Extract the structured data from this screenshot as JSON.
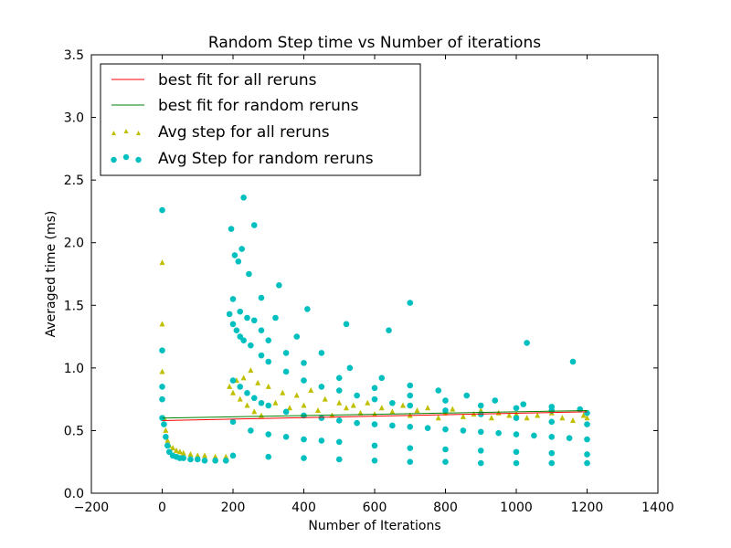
{
  "chart_data": {
    "type": "scatter",
    "title": "Random Step time vs Number of iterations",
    "xlabel": "Number of Iterations",
    "ylabel": "Averaged time (ms)",
    "xlim": [
      -200,
      1400
    ],
    "ylim": [
      0.0,
      3.5
    ],
    "xticks": [
      "−200",
      "0",
      "200",
      "400",
      "600",
      "800",
      "1000",
      "1200",
      "1400"
    ],
    "yticks": [
      "0.0",
      "0.5",
      "1.0",
      "1.5",
      "2.0",
      "2.5",
      "3.0",
      "3.5"
    ],
    "xtick_values": [
      -200,
      0,
      200,
      400,
      600,
      800,
      1000,
      1200,
      1400
    ],
    "ytick_values": [
      0.0,
      0.5,
      1.0,
      1.5,
      2.0,
      2.5,
      3.0,
      3.5
    ],
    "grid": false,
    "legend_position": "top-left",
    "series": [
      {
        "name": "best fit for all reruns",
        "kind": "line",
        "color": "#ff0000",
        "x": [
          0,
          1200
        ],
        "y": [
          0.58,
          0.65
        ]
      },
      {
        "name": "best fit for random reruns",
        "kind": "line",
        "color": "#008000",
        "x": [
          0,
          1200
        ],
        "y": [
          0.6,
          0.66
        ]
      },
      {
        "name": "Avg step for all reruns",
        "kind": "scatter",
        "marker": "triangle",
        "color": "#bfbf00",
        "x": [
          0,
          0,
          0,
          5,
          10,
          15,
          20,
          30,
          40,
          50,
          60,
          80,
          100,
          120,
          150,
          180,
          190,
          200,
          210,
          220,
          230,
          240,
          250,
          260,
          270,
          280,
          300,
          320,
          340,
          360,
          380,
          400,
          420,
          440,
          460,
          480,
          500,
          520,
          540,
          560,
          580,
          600,
          620,
          650,
          680,
          700,
          720,
          750,
          780,
          800,
          820,
          850,
          880,
          900,
          930,
          950,
          980,
          1000,
          1030,
          1060,
          1100,
          1130,
          1160,
          1190,
          1200
        ],
        "y": [
          1.84,
          1.35,
          0.97,
          0.6,
          0.5,
          0.42,
          0.38,
          0.36,
          0.34,
          0.33,
          0.32,
          0.31,
          0.3,
          0.3,
          0.29,
          0.29,
          0.85,
          0.8,
          0.9,
          0.75,
          0.92,
          0.7,
          0.98,
          0.65,
          0.88,
          0.62,
          0.85,
          0.72,
          0.8,
          0.68,
          0.78,
          0.7,
          0.82,
          0.66,
          0.75,
          0.62,
          0.72,
          0.68,
          0.7,
          0.64,
          0.72,
          0.63,
          0.68,
          0.65,
          0.7,
          0.62,
          0.66,
          0.68,
          0.6,
          0.64,
          0.67,
          0.61,
          0.63,
          0.66,
          0.6,
          0.64,
          0.62,
          0.63,
          0.6,
          0.62,
          0.64,
          0.6,
          0.58,
          0.62,
          0.6
        ]
      },
      {
        "name": "Avg Step for random reruns",
        "kind": "scatter",
        "marker": "circle",
        "color": "#00bfbf",
        "x": [
          0,
          0,
          0,
          0,
          0,
          5,
          10,
          15,
          20,
          30,
          40,
          50,
          60,
          80,
          100,
          120,
          150,
          180,
          200,
          220,
          240,
          260,
          280,
          300,
          350,
          400,
          450,
          500,
          550,
          600,
          650,
          700,
          750,
          800,
          850,
          900,
          950,
          1000,
          1050,
          1100,
          1150,
          1200,
          190,
          200,
          210,
          220,
          230,
          250,
          280,
          300,
          350,
          400,
          450,
          500,
          550,
          600,
          650,
          700,
          800,
          900,
          1000,
          1100,
          1200,
          200,
          250,
          300,
          350,
          400,
          450,
          500,
          600,
          700,
          800,
          900,
          1000,
          1100,
          1200,
          200,
          220,
          240,
          260,
          280,
          300,
          350,
          400,
          500,
          600,
          700,
          800,
          900,
          1000,
          1100,
          1200,
          195,
          205,
          215,
          225,
          230,
          245,
          260,
          280,
          320,
          380,
          450,
          530,
          620,
          700,
          780,
          860,
          940,
          1020,
          1100,
          1180,
          330,
          410,
          520,
          640,
          700,
          1030,
          1160,
          200,
          300,
          400,
          500,
          600,
          700,
          800,
          900,
          1000,
          1100,
          1200
        ],
        "y": [
          2.26,
          1.14,
          0.85,
          0.75,
          0.6,
          0.55,
          0.45,
          0.38,
          0.33,
          0.3,
          0.29,
          0.28,
          0.28,
          0.27,
          0.27,
          0.26,
          0.26,
          0.26,
          0.9,
          0.85,
          0.8,
          0.76,
          0.72,
          0.7,
          0.65,
          0.62,
          0.6,
          0.58,
          0.56,
          0.55,
          0.54,
          0.53,
          0.52,
          0.51,
          0.5,
          0.49,
          0.48,
          0.47,
          0.46,
          0.45,
          0.44,
          0.43,
          1.43,
          1.35,
          1.3,
          1.25,
          1.22,
          1.18,
          1.1,
          1.05,
          0.97,
          0.9,
          0.85,
          0.82,
          0.78,
          0.75,
          0.72,
          0.7,
          0.66,
          0.63,
          0.6,
          0.57,
          0.55,
          0.57,
          0.5,
          0.47,
          0.45,
          0.43,
          0.42,
          0.41,
          0.38,
          0.36,
          0.35,
          0.34,
          0.33,
          0.32,
          0.31,
          1.55,
          1.45,
          1.4,
          1.38,
          1.3,
          1.22,
          1.12,
          1.04,
          0.92,
          0.84,
          0.78,
          0.74,
          0.7,
          0.68,
          0.66,
          0.64,
          2.11,
          1.9,
          1.85,
          1.95,
          2.36,
          1.75,
          2.14,
          1.56,
          1.4,
          1.25,
          1.12,
          1.0,
          0.92,
          0.86,
          0.82,
          0.78,
          0.74,
          0.71,
          0.69,
          0.67,
          1.66,
          1.47,
          1.35,
          1.3,
          1.52,
          1.2,
          1.05,
          0.3,
          0.29,
          0.28,
          0.27,
          0.26,
          0.25,
          0.25,
          0.24,
          0.24,
          0.24,
          0.24
        ]
      }
    ]
  }
}
